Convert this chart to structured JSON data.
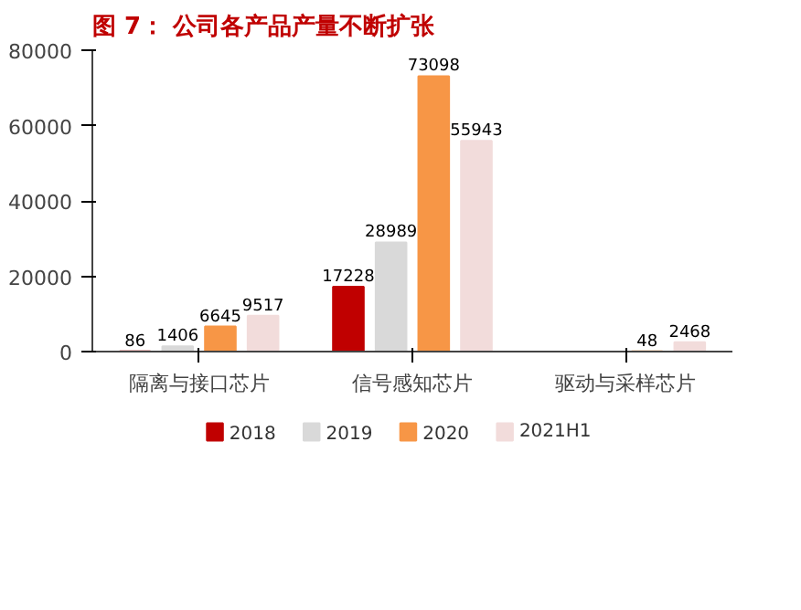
{
  "chart_data": {
    "type": "bar",
    "title": "图 7： 公司各产品产量不断扩张",
    "categories": [
      "隔离与接口芯片",
      "信号感知芯片",
      "驱动与采样芯片"
    ],
    "series": [
      {
        "name": "2018",
        "color": "#c00000",
        "values": [
          86,
          17228,
          null
        ]
      },
      {
        "name": "2019",
        "color": "#d9d9d9",
        "values": [
          1406,
          28989,
          null
        ]
      },
      {
        "name": "2020",
        "color": "#f79646",
        "values": [
          6645,
          73098,
          48
        ]
      },
      {
        "name": "2021H1",
        "color": "#f2dcdb",
        "values": [
          9517,
          55943,
          2468
        ]
      }
    ],
    "ylim": [
      0,
      80000
    ],
    "yticks": [
      0,
      20000,
      40000,
      60000,
      80000
    ],
    "data_labels": true,
    "grid": false,
    "legend": "bottom"
  }
}
